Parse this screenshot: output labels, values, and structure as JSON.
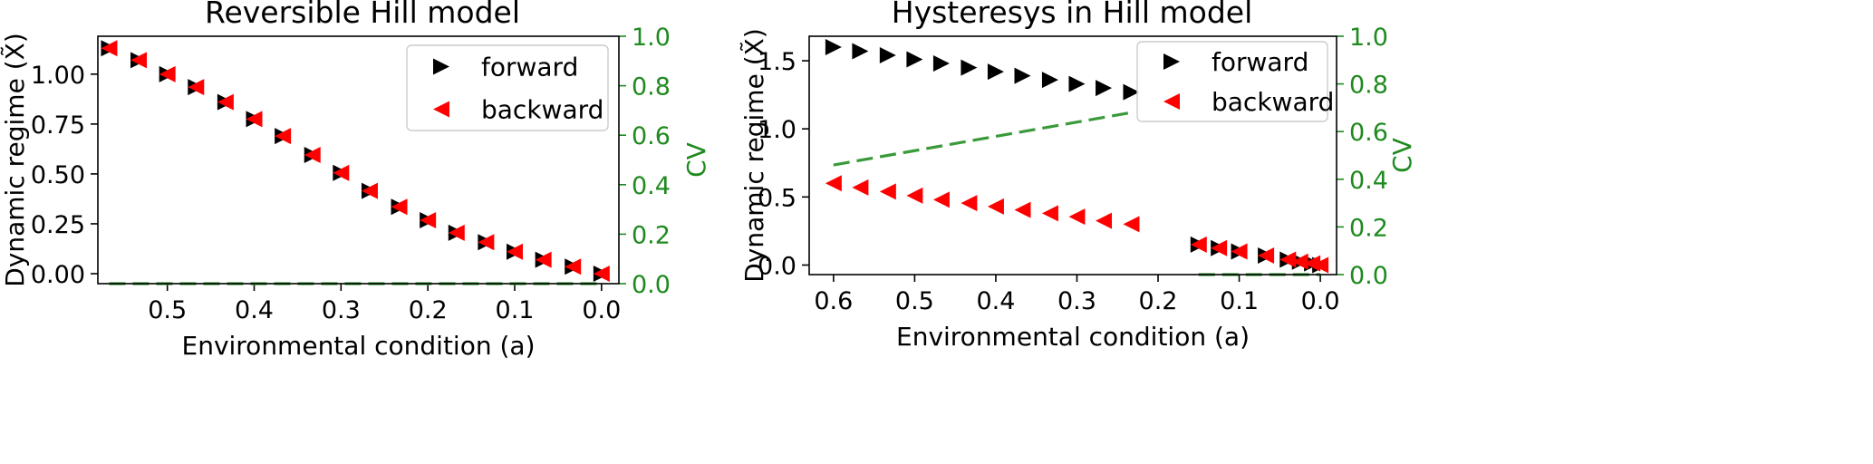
{
  "chart_data": [
    {
      "type": "scatter",
      "title": "Reversible Hill model",
      "xlabel": "Environmental condition (a)",
      "ylabel": "Dynamic regime (X̃)",
      "y2label": "CV",
      "xlim": [
        0.58,
        -0.02
      ],
      "ylim": [
        -0.05,
        1.19
      ],
      "y2lim": [
        0.0,
        1.0
      ],
      "x_ticks": [
        0.5,
        0.4,
        0.3,
        0.2,
        0.1,
        0.0
      ],
      "x_tick_labels": [
        "0.5",
        "0.4",
        "0.3",
        "0.2",
        "0.1",
        "0.0"
      ],
      "y_ticks": [
        0.0,
        0.25,
        0.5,
        0.75,
        1.0
      ],
      "y_tick_labels": [
        "0.00",
        "0.25",
        "0.50",
        "0.75",
        "1.00"
      ],
      "y2_ticks": [
        0.0,
        0.2,
        0.4,
        0.6,
        0.8,
        1.0
      ],
      "y2_tick_labels": [
        "0.0",
        "0.2",
        "0.4",
        "0.6",
        "0.8",
        "1.0"
      ],
      "legend_position": "top-right",
      "series": [
        {
          "name": "forward",
          "marker": "triangle-right",
          "color": "#000000",
          "x": [
            0.567,
            0.533,
            0.5,
            0.467,
            0.433,
            0.4,
            0.367,
            0.333,
            0.3,
            0.267,
            0.233,
            0.2,
            0.167,
            0.133,
            0.1,
            0.067,
            0.033,
            0.0
          ],
          "y": [
            1.13,
            1.07,
            1.0,
            0.935,
            0.86,
            0.775,
            0.69,
            0.595,
            0.505,
            0.415,
            0.335,
            0.268,
            0.205,
            0.158,
            0.11,
            0.07,
            0.035,
            0.0
          ]
        },
        {
          "name": "backward",
          "marker": "triangle-left",
          "color": "#ff0000",
          "x": [
            0.567,
            0.533,
            0.5,
            0.467,
            0.433,
            0.4,
            0.367,
            0.333,
            0.3,
            0.267,
            0.233,
            0.2,
            0.167,
            0.133,
            0.1,
            0.067,
            0.033,
            0.0
          ],
          "y": [
            1.13,
            1.07,
            1.0,
            0.935,
            0.86,
            0.775,
            0.69,
            0.595,
            0.505,
            0.415,
            0.335,
            0.268,
            0.205,
            0.158,
            0.11,
            0.07,
            0.035,
            0.0
          ]
        },
        {
          "marker": "dashed-line",
          "color": "#3a9a3a",
          "axis": "y2",
          "x": [
            0.567,
            0.0
          ],
          "y": [
            0.0,
            0.0
          ]
        }
      ]
    },
    {
      "type": "scatter",
      "title": "Hysteresys in Hill model",
      "xlabel": "Environmental condition (a)",
      "ylabel": "Dynamic regime (X̃)",
      "y2label": "CV",
      "xlim": [
        0.63,
        -0.02
      ],
      "ylim": [
        -0.07,
        1.68
      ],
      "y2lim": [
        0.0,
        1.0
      ],
      "x_ticks": [
        0.6,
        0.5,
        0.4,
        0.3,
        0.2,
        0.1,
        0.0
      ],
      "x_tick_labels": [
        "0.6",
        "0.5",
        "0.4",
        "0.3",
        "0.2",
        "0.1",
        "0.0"
      ],
      "y_ticks": [
        0.0,
        0.5,
        1.0,
        1.5
      ],
      "y_tick_labels": [
        "0.0",
        "0.5",
        "1.0",
        "1.5"
      ],
      "y2_ticks": [
        0.0,
        0.2,
        0.4,
        0.6,
        0.8,
        1.0
      ],
      "y2_tick_labels": [
        "0.0",
        "0.2",
        "0.4",
        "0.6",
        "0.8",
        "1.0"
      ],
      "legend_position": "top-right",
      "series": [
        {
          "name": "forward",
          "marker": "triangle-right",
          "color": "#000000",
          "x": [
            0.6,
            0.567,
            0.533,
            0.5,
            0.467,
            0.433,
            0.4,
            0.367,
            0.333,
            0.3,
            0.267,
            0.233,
            0.15,
            0.125,
            0.1,
            0.067,
            0.04,
            0.025,
            0.01,
            0.0
          ],
          "y": [
            1.6,
            1.57,
            1.54,
            1.51,
            1.48,
            1.45,
            1.42,
            1.39,
            1.36,
            1.33,
            1.3,
            1.27,
            0.15,
            0.125,
            0.1,
            0.07,
            0.04,
            0.025,
            0.012,
            0.0
          ]
        },
        {
          "name": "backward",
          "marker": "triangle-left",
          "color": "#ff0000",
          "x": [
            0.6,
            0.567,
            0.533,
            0.5,
            0.467,
            0.433,
            0.4,
            0.367,
            0.333,
            0.3,
            0.267,
            0.233,
            0.15,
            0.125,
            0.1,
            0.067,
            0.04,
            0.025,
            0.01,
            0.0
          ],
          "y": [
            0.6,
            0.57,
            0.54,
            0.51,
            0.48,
            0.455,
            0.43,
            0.405,
            0.38,
            0.355,
            0.325,
            0.3,
            0.15,
            0.125,
            0.1,
            0.07,
            0.04,
            0.025,
            0.012,
            0.0
          ]
        },
        {
          "marker": "dashed-line",
          "color": "#3a9a3a",
          "axis": "y2",
          "x": [
            0.6,
            0.233
          ],
          "y": [
            0.46,
            0.68
          ]
        },
        {
          "marker": "dashed-line",
          "color": "#3a9a3a",
          "axis": "y2",
          "x": [
            0.15,
            0.0
          ],
          "y": [
            0.0,
            0.0
          ]
        }
      ]
    }
  ]
}
